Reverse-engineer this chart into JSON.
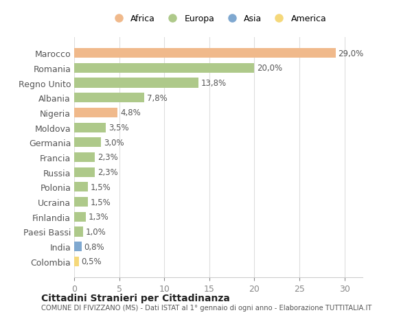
{
  "countries": [
    "Marocco",
    "Romania",
    "Regno Unito",
    "Albania",
    "Nigeria",
    "Moldova",
    "Germania",
    "Francia",
    "Russia",
    "Polonia",
    "Ucraina",
    "Finlandia",
    "Paesi Bassi",
    "India",
    "Colombia"
  ],
  "values": [
    29.0,
    20.0,
    13.8,
    7.8,
    4.8,
    3.5,
    3.0,
    2.3,
    2.3,
    1.5,
    1.5,
    1.3,
    1.0,
    0.8,
    0.5
  ],
  "labels": [
    "29,0%",
    "20,0%",
    "13,8%",
    "7,8%",
    "4,8%",
    "3,5%",
    "3,0%",
    "2,3%",
    "2,3%",
    "1,5%",
    "1,5%",
    "1,3%",
    "1,0%",
    "0,8%",
    "0,5%"
  ],
  "colors": [
    "#f0b98b",
    "#aec98a",
    "#aec98a",
    "#aec98a",
    "#f0b98b",
    "#aec98a",
    "#aec98a",
    "#aec98a",
    "#aec98a",
    "#aec98a",
    "#aec98a",
    "#aec98a",
    "#aec98a",
    "#7fa8d0",
    "#f5d87a"
  ],
  "legend_labels": [
    "Africa",
    "Europa",
    "Asia",
    "America"
  ],
  "legend_colors": [
    "#f0b98b",
    "#aec98a",
    "#7fa8d0",
    "#f5d87a"
  ],
  "title": "Cittadini Stranieri per Cittadinanza",
  "subtitle": "COMUNE DI FIVIZZANO (MS) - Dati ISTAT al 1° gennaio di ogni anno - Elaborazione TUTTITALIA.IT",
  "xlim": [
    0,
    32
  ],
  "xticks": [
    0,
    5,
    10,
    15,
    20,
    25,
    30
  ],
  "background_color": "#ffffff",
  "bar_height": 0.65
}
